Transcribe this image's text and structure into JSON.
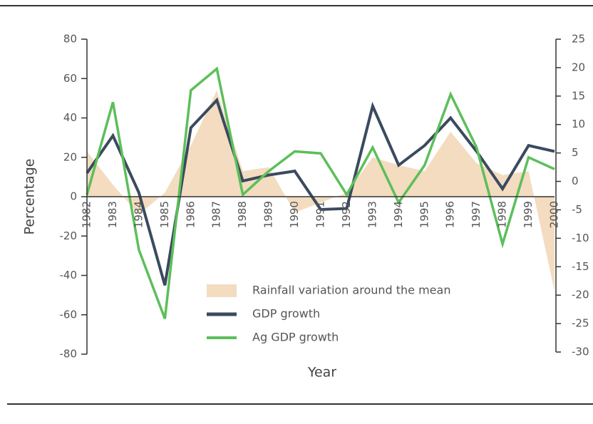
{
  "chart_data": {
    "type": "line",
    "x_label": "Year",
    "y_label": "Percentage",
    "categories": [
      "1982",
      "1983",
      "1984",
      "1985",
      "1986",
      "1987",
      "1988",
      "1989",
      "1990",
      "1991",
      "1992",
      "1993",
      "1994",
      "1995",
      "1996",
      "1997",
      "1998",
      "1999",
      "2000"
    ],
    "series": [
      {
        "name": "Rainfall variation around the mean",
        "style": "area",
        "color": "#f3dcc0",
        "values": [
          23,
          6,
          -9,
          2,
          26,
          54,
          13,
          15,
          -8,
          -3,
          2,
          20,
          16,
          13,
          33,
          17,
          11,
          13,
          -48
        ]
      },
      {
        "name": "GDP growth",
        "style": "line",
        "color": "#3b4a5e",
        "values": [
          12,
          31,
          2,
          -45,
          35,
          49,
          8,
          11,
          13,
          -6.5,
          -6,
          46,
          16,
          26,
          40,
          23,
          4,
          26,
          23
        ]
      },
      {
        "name": "Ag GDP growth",
        "style": "line",
        "color": "#5cbf5a",
        "values": [
          1,
          48,
          -27,
          -62,
          54,
          65,
          1,
          13,
          23,
          22,
          1,
          25,
          -3,
          16,
          52,
          25,
          -24,
          20,
          14
        ]
      }
    ],
    "ylim": [
      -80,
      80
    ],
    "yticks": [
      -80,
      -60,
      -40,
      -20,
      0,
      20,
      40,
      60,
      80
    ],
    "y2lim": [
      -30,
      25
    ],
    "y2ticks": [
      -30,
      -25,
      -20,
      -15,
      -10,
      -5,
      0,
      5,
      10,
      15,
      20,
      25
    ]
  }
}
